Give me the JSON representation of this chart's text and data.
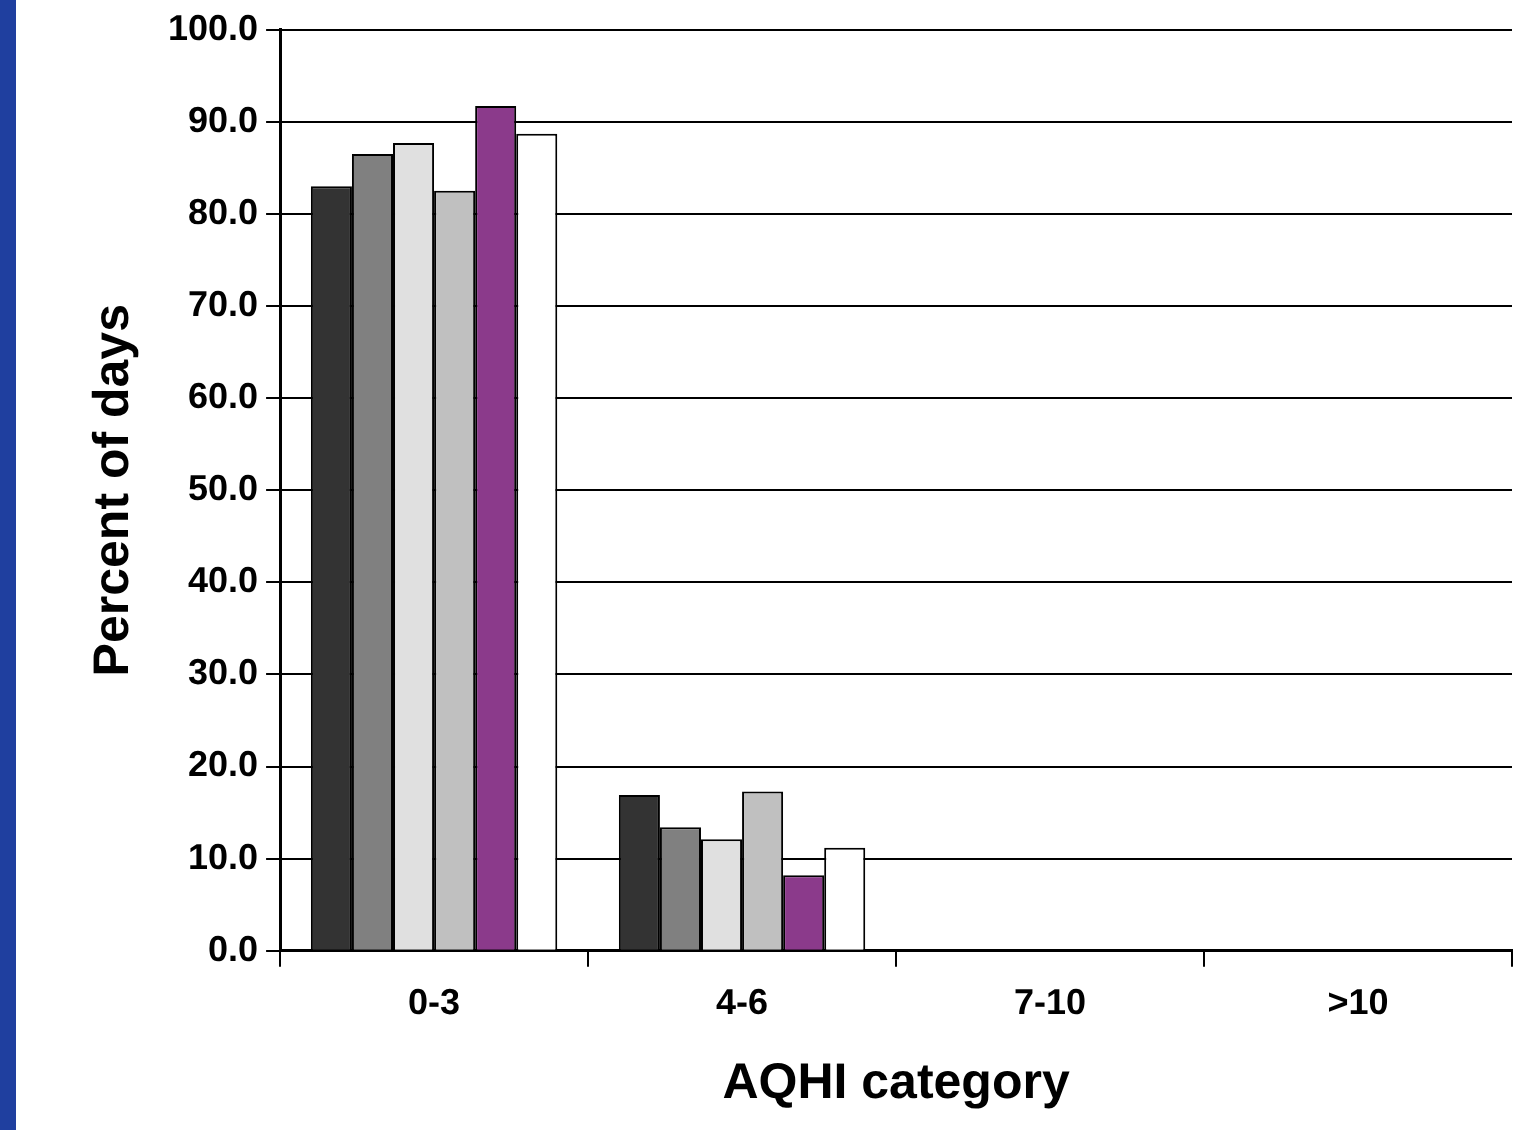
{
  "chart_data": {
    "type": "bar",
    "xlabel": "AQHI category",
    "ylabel": "Percent of days",
    "categories": [
      "0-3",
      "4-6",
      "7-10",
      ">10"
    ],
    "series": [
      {
        "color": "#333333",
        "values": [
          83.0,
          16.9,
          0,
          0
        ]
      },
      {
        "color": "#808080",
        "values": [
          86.5,
          13.4,
          0,
          0
        ]
      },
      {
        "color": "#e0e0e0",
        "values": [
          87.7,
          12.1,
          0,
          0
        ]
      },
      {
        "color": "#c0c0c0",
        "values": [
          82.5,
          17.3,
          0,
          0
        ]
      },
      {
        "color": "#8b3a8b",
        "values": [
          91.7,
          8.2,
          0,
          0
        ]
      },
      {
        "color": "#ffffff",
        "values": [
          88.7,
          11.2,
          0,
          0
        ]
      }
    ],
    "ylim": [
      0,
      100
    ],
    "yticks": [
      {
        "value": 0,
        "label": "0.0"
      },
      {
        "value": 10,
        "label": "10.0"
      },
      {
        "value": 20,
        "label": "20.0"
      },
      {
        "value": 30,
        "label": "30.0"
      },
      {
        "value": 40,
        "label": "40.0"
      },
      {
        "value": 50,
        "label": "50.0"
      },
      {
        "value": 60,
        "label": "60.0"
      },
      {
        "value": 70,
        "label": "70.0"
      },
      {
        "value": 80,
        "label": "80.0"
      },
      {
        "value": 90,
        "label": "90.0"
      },
      {
        "value": 100,
        "label": "100.0"
      }
    ],
    "grid": "y",
    "legend": false
  }
}
